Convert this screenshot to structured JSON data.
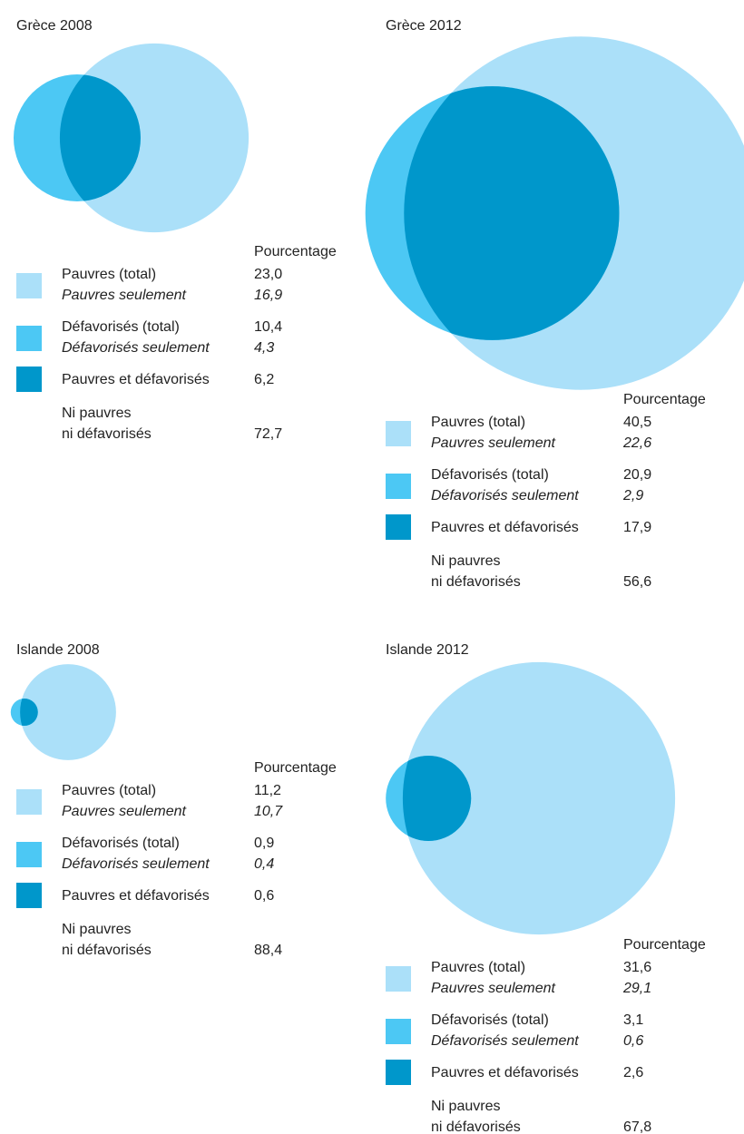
{
  "chart_data": [
    {
      "type": "venn",
      "title": "Grèce 2008",
      "legend_title": "Pourcentage",
      "categories": [
        "Pauvres (total)",
        "Pauvres seulement",
        "Défavorisés (total)",
        "Défavorisés seulement",
        "Pauvres et défavorisés",
        "Ni pauvres\nni défavorisés"
      ],
      "values": [
        23.0,
        16.9,
        10.4,
        4.3,
        6.2,
        72.7
      ],
      "value_labels": [
        "23,0",
        "16,9",
        "10,4",
        "4,3",
        "6,2",
        "72,7"
      ],
      "colors": [
        "#abe0f9",
        "#4cc8f4",
        "#0097cb"
      ]
    },
    {
      "type": "venn",
      "title": "Grèce 2012",
      "legend_title": "Pourcentage",
      "categories": [
        "Pauvres (total)",
        "Pauvres seulement",
        "Défavorisés (total)",
        "Défavorisés seulement",
        "Pauvres et défavorisés",
        "Ni pauvres\nni défavorisés"
      ],
      "values": [
        40.5,
        22.6,
        20.9,
        2.9,
        17.9,
        56.6
      ],
      "value_labels": [
        "40,5",
        "22,6",
        "20,9",
        "2,9",
        "17,9",
        "56,6"
      ],
      "colors": [
        "#abe0f9",
        "#4cc8f4",
        "#0097cb"
      ]
    },
    {
      "type": "venn",
      "title": "Islande 2008",
      "legend_title": "Pourcentage",
      "categories": [
        "Pauvres (total)",
        "Pauvres seulement",
        "Défavorisés (total)",
        "Défavorisés seulement",
        "Pauvres et défavorisés",
        "Ni pauvres\nni défavorisés"
      ],
      "values": [
        11.2,
        10.7,
        0.9,
        0.4,
        0.6,
        88.4
      ],
      "value_labels": [
        "11,2",
        "10,7",
        "0,9",
        "0,4",
        "0,6",
        "88,4"
      ],
      "colors": [
        "#abe0f9",
        "#4cc8f4",
        "#0097cb"
      ]
    },
    {
      "type": "venn",
      "title": "Islande 2012",
      "legend_title": "Pourcentage",
      "categories": [
        "Pauvres (total)",
        "Pauvres seulement",
        "Défavorisés (total)",
        "Défavorisés seulement",
        "Pauvres et défavorisés",
        "Ni pauvres\nni défavorisés"
      ],
      "values": [
        31.6,
        29.1,
        3.1,
        0.6,
        2.6,
        67.8
      ],
      "value_labels": [
        "31,6",
        "29,1",
        "3,1",
        "0,6",
        "2,6",
        "67,8"
      ],
      "colors": [
        "#abe0f9",
        "#4cc8f4",
        "#0097cb"
      ]
    }
  ]
}
